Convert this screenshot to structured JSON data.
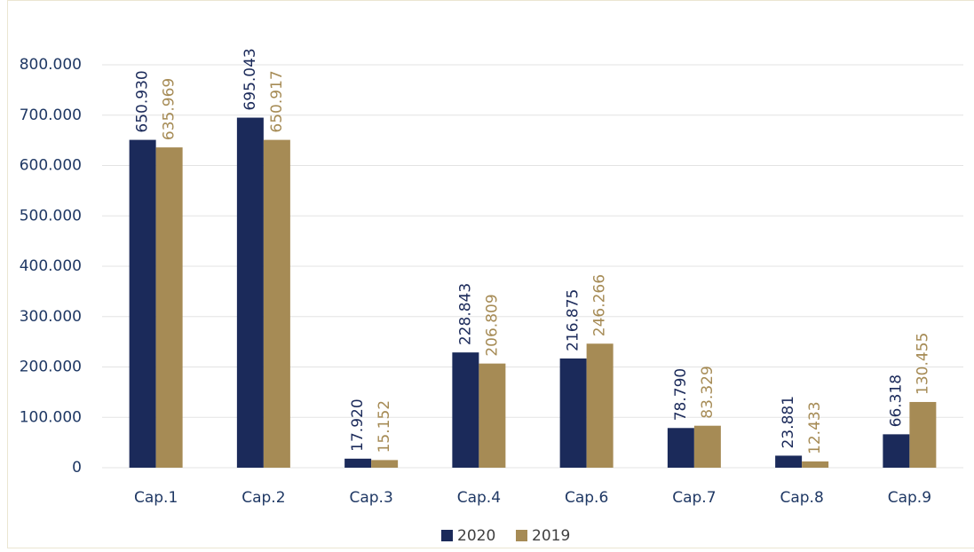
{
  "chart_data": {
    "type": "bar",
    "categories": [
      "Cap.1",
      "Cap.2",
      "Cap.3",
      "Cap.4",
      "Cap.6",
      "Cap.7",
      "Cap.8",
      "Cap.9"
    ],
    "series": [
      {
        "name": "2020",
        "color": "#1b2a5a",
        "values": [
          650930,
          695043,
          17920,
          228843,
          216875,
          78790,
          23881,
          66318
        ],
        "value_labels": [
          "650.930",
          "695.043",
          "17.920",
          "228.843",
          "216.875",
          "78.790",
          "23.881",
          "66.318"
        ]
      },
      {
        "name": "2019",
        "color": "#a68b55",
        "values": [
          635969,
          650917,
          15152,
          206809,
          246266,
          83329,
          12433,
          130455
        ],
        "value_labels": [
          "635.969",
          "650.917",
          "15.152",
          "206.809",
          "246.266",
          "83.329",
          "12.433",
          "130.455"
        ]
      }
    ],
    "ylim": [
      0,
      800000
    ],
    "yticks": [
      0,
      {
        "value": 100000,
        "label": "100.000"
      },
      {
        "value": 200000,
        "label": "200.000"
      },
      {
        "value": 300000,
        "label": "300.000"
      },
      {
        "value": 400000,
        "label": "400.000"
      },
      {
        "value": 500000,
        "label": "500.000"
      },
      {
        "value": 600000,
        "label": "600.000"
      },
      {
        "value": 700000,
        "label": "700.000"
      },
      {
        "value": 800000,
        "label": "800.000"
      }
    ],
    "grid": true,
    "legend": "bottom"
  }
}
